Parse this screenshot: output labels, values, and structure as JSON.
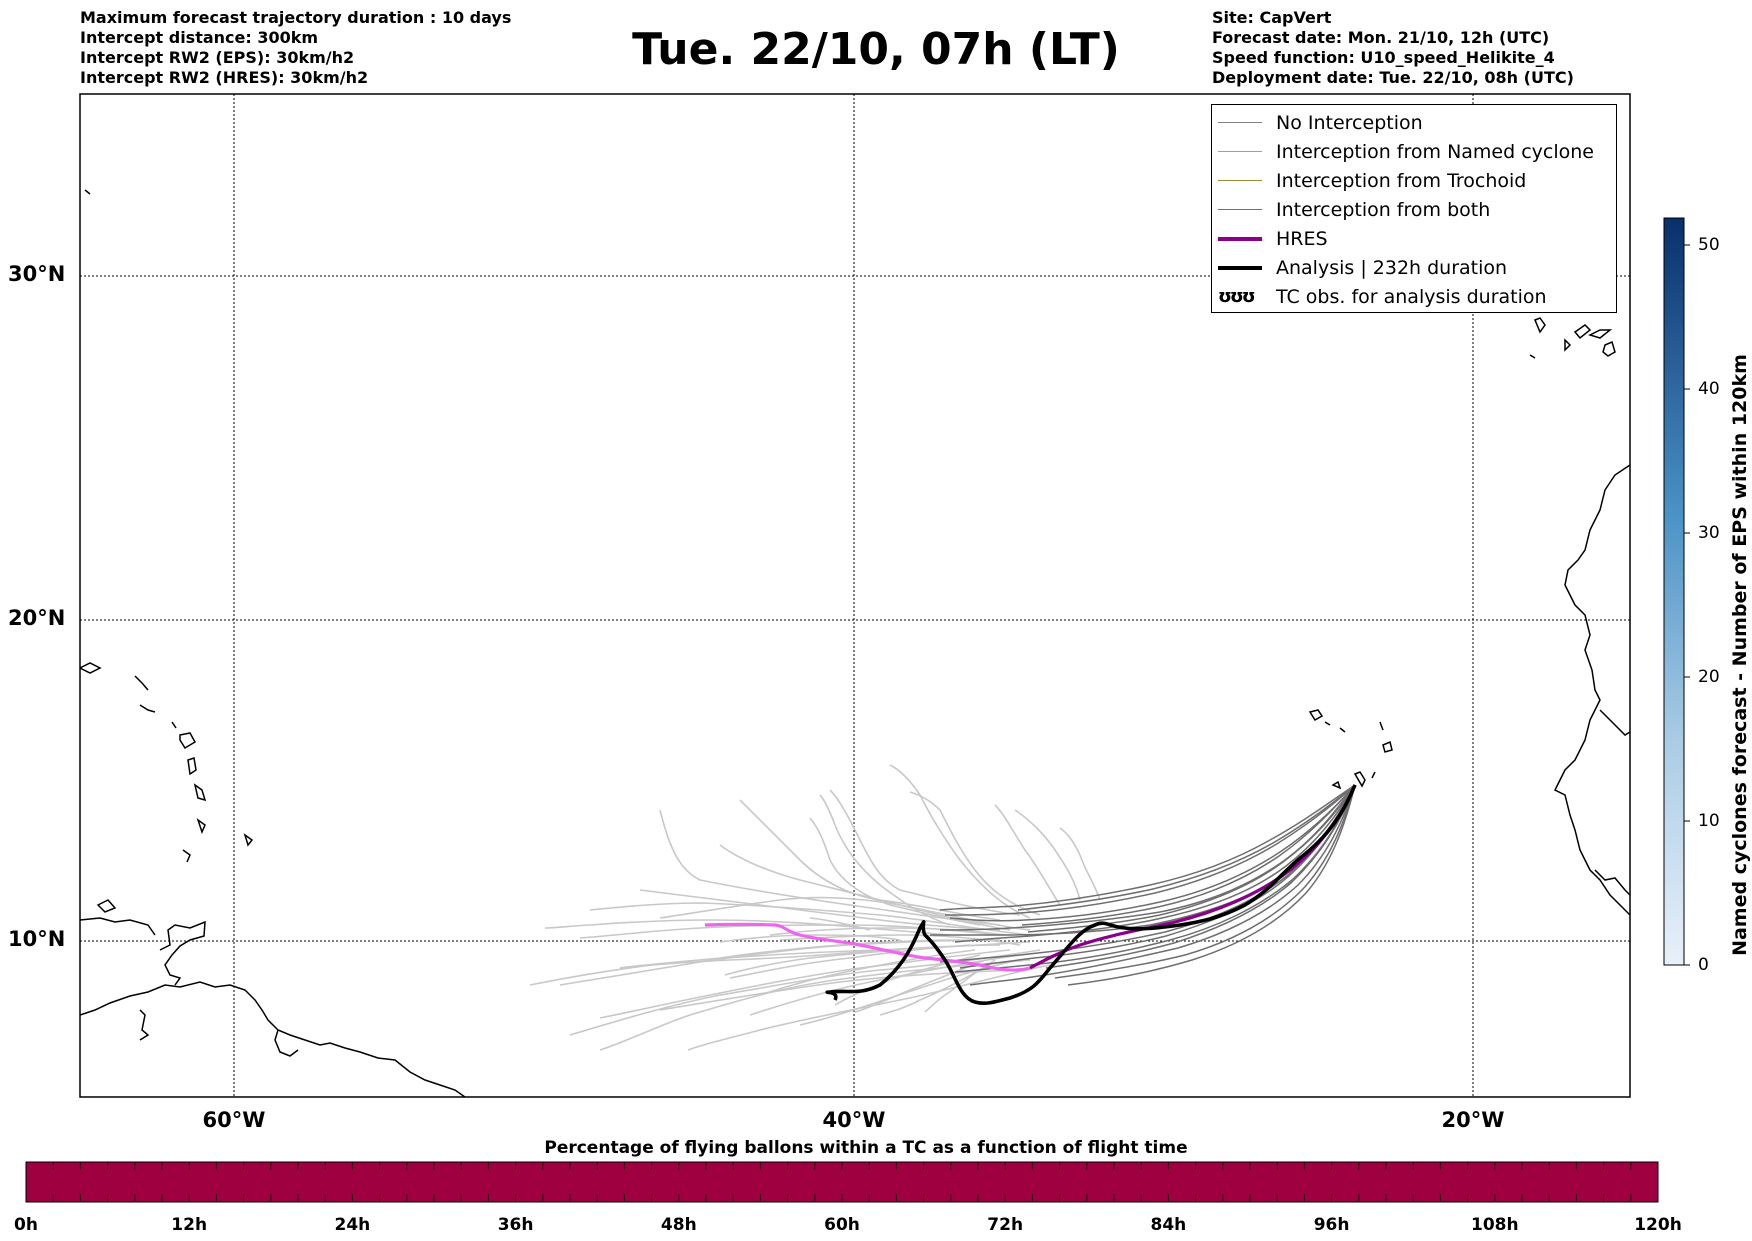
{
  "header_left": [
    "Maximum forecast trajectory duration : 10 days",
    "Intercept distance: 300km",
    "Intercept RW2 (EPS):  30km/h2",
    "Intercept RW2 (HRES): 30km/h2"
  ],
  "title": "Tue. 22/10, 07h (LT)",
  "header_right": [
    "Site: CapVert",
    "Forecast date: Mon. 21/10, 12h (UTC)",
    "Speed function: U10_speed_Helikite_4",
    "Deployment date: Tue. 22/10, 08h (UTC)"
  ],
  "lat_labels": [
    "30°N",
    "20°N",
    "10°N"
  ],
  "lon_labels": [
    "60°W",
    "40°W",
    "20°W"
  ],
  "legend": [
    {
      "label": "No Interception",
      "color": "#808080"
    },
    {
      "label": "Interception from Named cyclone",
      "color": "#ff7f50"
    },
    {
      "label": "Interception from Trochoid",
      "color": "#9b8a2e"
    },
    {
      "label": "Interception from both",
      "color": "#2ca02c"
    },
    {
      "label": "HRES",
      "color": "#8b008b"
    },
    {
      "label": "Analysis | 232h duration",
      "color": "#000000"
    },
    {
      "label": "TC obs. for analysis duration",
      "symbol": "ʊʊʊ"
    }
  ],
  "colorbar": {
    "label": "Named cyclones forecast - Number of EPS within 120km",
    "ticks": [
      "0",
      "10",
      "20",
      "30",
      "40",
      "50"
    ],
    "colors": [
      "#e3eef8",
      "#08306b"
    ]
  },
  "bottom_bar": {
    "title": "Percentage of flying ballons within a TC as a function of flight time",
    "ticks": [
      "0h",
      "12h",
      "24h",
      "36h",
      "48h",
      "60h",
      "72h",
      "84h",
      "96h",
      "108h",
      "120h"
    ],
    "color": "#9e0040"
  }
}
